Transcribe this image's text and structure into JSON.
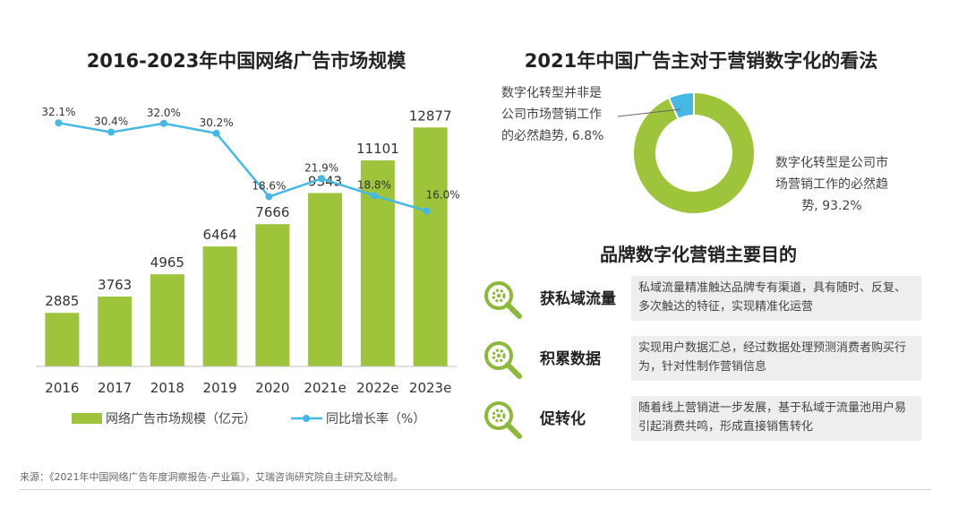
{
  "chart_data": [
    {
      "type": "bar+line",
      "title": "2016-2023年中国网络广告市场规模",
      "categories": [
        "2016",
        "2017",
        "2018",
        "2019",
        "2020",
        "2021e",
        "2022e",
        "2023e"
      ],
      "series": [
        {
          "name": "网络广告市场规模（亿元）",
          "type": "bar",
          "color": "#9dc43b",
          "values": [
            2885,
            3763,
            4965,
            6464,
            7666,
            9343,
            11101,
            12877
          ]
        },
        {
          "name": "同比增长率（%）",
          "type": "line",
          "color": "#45b8e6",
          "values": [
            32.1,
            30.4,
            32.0,
            30.2,
            18.6,
            21.9,
            18.8,
            16.0
          ],
          "labels": [
            "32.1%",
            "30.4%",
            "32.0%",
            "30.2%",
            "18.6%",
            "21.9%",
            "18.8%",
            "16.0%"
          ]
        }
      ],
      "legend_position": "bottom",
      "grid": false
    },
    {
      "type": "pie",
      "title": "2021年中国广告主对于营销数字化的看法",
      "slices": [
        {
          "label": "数字化转型是公司市场营销工作的必然趋势",
          "value": 93.2,
          "display": "93.2%",
          "color": "#9dc43b"
        },
        {
          "label": "数字化转型并非是公司市场营销工作的必然趋势",
          "value": 6.8,
          "display": "6.8%",
          "color": "#45b8e6"
        }
      ]
    }
  ],
  "left_chart": {
    "legend": {
      "bar": "网络广告市场规模（亿元）",
      "line": "同比增长率（%）"
    }
  },
  "donut": {
    "label_minor": [
      "数字化转型并非是",
      "公司市场营销工作",
      "的必然趋势, 6.8%"
    ],
    "label_major": [
      "数字化转型是公司市",
      "场营销工作的必然趋",
      "势, 93.2%"
    ]
  },
  "purposes": {
    "title": "品牌数字化营销主要目的",
    "items": [
      {
        "name": "获私域流量",
        "icon": "gear-magnifier-icon",
        "desc": "私域流量精准触达品牌专有渠道，具有随时、反复、多次触达的特征，实现精准化运营"
      },
      {
        "name": "积累数据",
        "icon": "gear-magnifier-icon",
        "desc": "实现用户数据汇总，经过数据处理预测消费者购买行为，针对性制作营销信息"
      },
      {
        "name": "促转化",
        "icon": "gear-magnifier-icon",
        "desc": "随着线上营销进一步发展，基于私域于流量池用户易引起消费共鸣，形成直接销售转化"
      }
    ]
  },
  "source": "来源：《2021年中国网络广告年度洞察报告-产业篇》，艾瑞咨询研究院自主研究及绘制。",
  "colors": {
    "accent_green": "#9dc43b",
    "accent_blue": "#45b8e6",
    "icon_green": "#8db93a"
  }
}
